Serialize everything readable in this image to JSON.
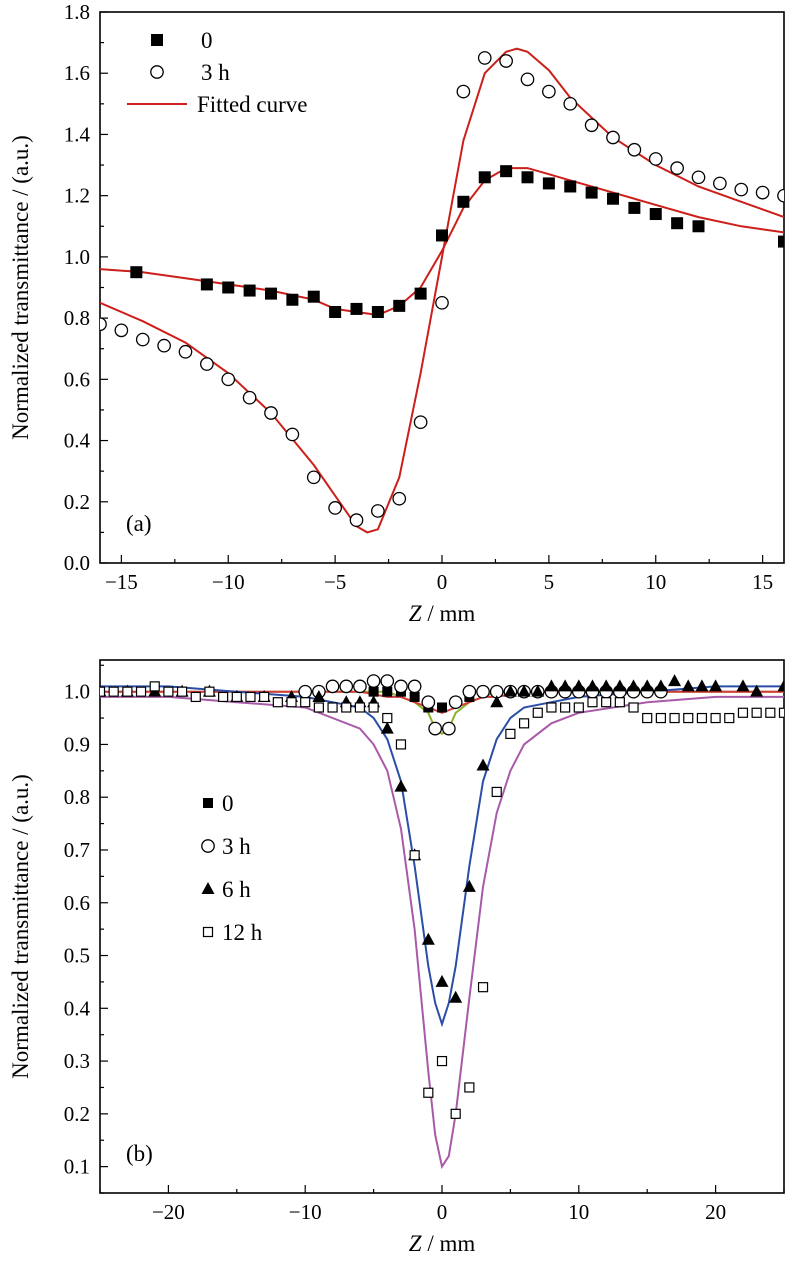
{
  "chart_data": [
    {
      "type": "scatter",
      "panel_label": "(a)",
      "xlabel": "Z / mm",
      "ylabel": "Normalized transmittance / (a.u.)",
      "xlim": [
        -16,
        16
      ],
      "ylim": [
        0.0,
        1.8
      ],
      "xticks": [
        -15,
        -10,
        -5,
        0,
        5,
        10,
        15
      ],
      "yticks": [
        0.0,
        0.2,
        0.4,
        0.6,
        0.8,
        1.0,
        1.2,
        1.4,
        1.6,
        1.8
      ],
      "grid": false,
      "legend": {
        "placement": "top-left",
        "entries": [
          "0",
          "3 h",
          "Fitted curve"
        ]
      },
      "series": [
        {
          "name": "0",
          "marker": "filled-square",
          "color": "#000000",
          "x": [
            -14.3,
            -11,
            -10,
            -9,
            -8,
            -7,
            -6,
            -5,
            -4,
            -3,
            -2,
            -1,
            0,
            1,
            2,
            3,
            4,
            5,
            6,
            7,
            8,
            9,
            10,
            11,
            12,
            16
          ],
          "y": [
            0.95,
            0.91,
            0.9,
            0.89,
            0.88,
            0.86,
            0.87,
            0.82,
            0.83,
            0.82,
            0.84,
            0.88,
            1.07,
            1.18,
            1.26,
            1.28,
            1.26,
            1.24,
            1.23,
            1.21,
            1.19,
            1.16,
            1.14,
            1.11,
            1.1,
            1.05
          ]
        },
        {
          "name": "3 h",
          "marker": "open-circle",
          "color": "#000000",
          "x": [
            -16,
            -15,
            -14,
            -13,
            -12,
            -11,
            -10,
            -9,
            -8,
            -7,
            -6,
            -5,
            -4,
            -3,
            -2,
            -1,
            0,
            1,
            2,
            3,
            4,
            5,
            6,
            7,
            8,
            9,
            10,
            11,
            12,
            13,
            14,
            15,
            16
          ],
          "y": [
            0.78,
            0.76,
            0.73,
            0.71,
            0.69,
            0.65,
            0.6,
            0.54,
            0.49,
            0.42,
            0.28,
            0.18,
            0.14,
            0.17,
            0.21,
            0.46,
            0.85,
            1.54,
            1.65,
            1.64,
            1.58,
            1.54,
            1.5,
            1.43,
            1.39,
            1.35,
            1.32,
            1.29,
            1.26,
            1.24,
            1.22,
            1.21,
            1.2
          ]
        },
        {
          "name": "Fitted curve",
          "line_for": "0",
          "color": "#cc1f1a",
          "x": [
            -16,
            -14,
            -12,
            -10,
            -8,
            -6,
            -5,
            -4,
            -3,
            -2,
            -1,
            0,
            1,
            2,
            3,
            4,
            5,
            6,
            8,
            10,
            12,
            14,
            16
          ],
          "y": [
            0.96,
            0.95,
            0.93,
            0.91,
            0.89,
            0.86,
            0.83,
            0.82,
            0.81,
            0.84,
            0.9,
            1.02,
            1.16,
            1.25,
            1.29,
            1.29,
            1.27,
            1.25,
            1.21,
            1.17,
            1.13,
            1.1,
            1.08
          ]
        },
        {
          "name": "Fitted curve",
          "line_for": "3 h",
          "color": "#cc1f1a",
          "x": [
            -16,
            -14,
            -12,
            -10,
            -8,
            -6,
            -5,
            -4,
            -3.5,
            -3,
            -2,
            -1,
            0,
            1,
            2,
            3,
            3.5,
            4,
            5,
            6,
            8,
            10,
            12,
            14,
            16
          ],
          "y": [
            0.85,
            0.79,
            0.72,
            0.62,
            0.49,
            0.32,
            0.22,
            0.12,
            0.1,
            0.11,
            0.28,
            0.62,
            1.0,
            1.38,
            1.6,
            1.67,
            1.68,
            1.67,
            1.61,
            1.52,
            1.39,
            1.3,
            1.23,
            1.18,
            1.13
          ]
        }
      ]
    },
    {
      "type": "scatter",
      "panel_label": "(b)",
      "xlabel": "Z / mm",
      "ylabel": "Normalized transmittance / (a.u.)",
      "xlim": [
        -25,
        25
      ],
      "ylim": [
        0.05,
        1.06
      ],
      "xticks": [
        -20,
        -10,
        0,
        10,
        20
      ],
      "yticks": [
        0.1,
        0.2,
        0.3,
        0.4,
        0.5,
        0.6,
        0.7,
        0.8,
        0.9,
        1.0
      ],
      "grid": false,
      "legend": {
        "placement": "left",
        "entries": [
          "0",
          "3 h",
          "6 h",
          "12 h"
        ]
      },
      "series": [
        {
          "name": "0",
          "marker": "filled-square-small",
          "color": "#000000",
          "x": [
            -5,
            -4,
            -3,
            -2,
            -1,
            0,
            1,
            2,
            3,
            4
          ],
          "y": [
            1.0,
            1.0,
            1.0,
            0.99,
            0.97,
            0.97,
            0.98,
            0.99,
            1.0,
            1.0
          ]
        },
        {
          "name": "3 h",
          "marker": "open-circle",
          "color": "#000000",
          "x": [
            -10,
            -9,
            -8,
            -7,
            -6,
            -5,
            -4,
            -3,
            -2,
            -1,
            -0.5,
            0.5,
            1,
            2,
            3,
            4,
            5,
            6,
            7,
            8,
            9,
            10,
            11,
            12,
            13,
            14,
            15,
            16
          ],
          "y": [
            1.0,
            1.0,
            1.01,
            1.01,
            1.01,
            1.02,
            1.02,
            1.01,
            1.01,
            0.98,
            0.93,
            0.93,
            0.98,
            1.0,
            1.0,
            1.0,
            1.0,
            1.0,
            1.0,
            1.0,
            1.0,
            1.0,
            1.0,
            1.0,
            1.0,
            1.0,
            1.0,
            1.0
          ]
        },
        {
          "name": "6 h",
          "marker": "filled-triangle",
          "color": "#000000",
          "x": [
            -25,
            -23,
            -21,
            -19,
            -17,
            -15,
            -13,
            -11,
            -9,
            -7,
            -6,
            -5,
            -4,
            -3,
            -2,
            -1,
            0,
            1,
            2,
            3,
            4,
            5,
            6,
            7,
            8,
            9,
            10,
            11,
            12,
            13,
            14,
            15,
            16,
            17,
            18,
            19,
            20,
            22,
            23,
            25
          ],
          "y": [
            1.0,
            1.0,
            1.0,
            1.0,
            1.0,
            0.99,
            0.99,
            0.99,
            0.99,
            0.98,
            0.98,
            0.98,
            0.93,
            0.82,
            0.69,
            0.53,
            0.45,
            0.42,
            0.63,
            0.86,
            0.98,
            1.0,
            1.0,
            1.0,
            1.01,
            1.01,
            1.01,
            1.01,
            1.01,
            1.01,
            1.01,
            1.01,
            1.01,
            1.02,
            1.01,
            1.01,
            1.01,
            1.01,
            1.0,
            1.01
          ]
        },
        {
          "name": "12 h",
          "marker": "open-square",
          "color": "#000000",
          "x": [
            -25,
            -24,
            -23,
            -22,
            -21,
            -20,
            -19,
            -18,
            -17,
            -16,
            -15,
            -14,
            -13,
            -12,
            -11,
            -10,
            -9,
            -8,
            -7,
            -6,
            -5,
            -4,
            -3,
            -2,
            -1,
            0,
            1,
            2,
            3,
            4,
            5,
            6,
            7,
            8,
            9,
            10,
            11,
            12,
            13,
            14,
            15,
            16,
            17,
            18,
            19,
            20,
            21,
            22,
            23,
            24,
            25
          ],
          "y": [
            1.0,
            1.0,
            1.0,
            1.0,
            1.01,
            1.0,
            1.0,
            0.99,
            1.0,
            0.99,
            0.99,
            0.99,
            0.99,
            0.98,
            0.98,
            0.98,
            0.97,
            0.97,
            0.97,
            0.97,
            0.97,
            0.95,
            0.9,
            0.69,
            0.24,
            0.3,
            0.2,
            0.25,
            0.44,
            0.81,
            0.92,
            0.94,
            0.96,
            0.97,
            0.97,
            0.97,
            0.98,
            0.98,
            0.98,
            0.97,
            0.95,
            0.95,
            0.95,
            0.95,
            0.95,
            0.95,
            0.95,
            0.96,
            0.96,
            0.96,
            0.96
          ]
        },
        {
          "name": "",
          "line_for": "3 h",
          "color": "#8ab52a",
          "x": [
            -25,
            -15,
            -10,
            -6,
            -4,
            -3,
            -2,
            -1,
            -0.5,
            0,
            0.5,
            1,
            2,
            3,
            4,
            6,
            10,
            15,
            25
          ],
          "y": [
            1.0,
            1.0,
            1.0,
            1.0,
            1.0,
            0.99,
            0.98,
            0.96,
            0.93,
            0.92,
            0.93,
            0.96,
            0.98,
            0.99,
            1.0,
            1.0,
            1.0,
            1.0,
            1.0
          ]
        },
        {
          "name": "",
          "line_for": "0",
          "color": "#d63a3a",
          "x": [
            -25,
            -10,
            -6,
            -4,
            -3,
            -2,
            -1,
            0,
            1,
            2,
            3,
            4,
            6,
            10,
            25
          ],
          "y": [
            1.0,
            1.0,
            1.0,
            0.99,
            0.99,
            0.98,
            0.97,
            0.96,
            0.97,
            0.98,
            0.99,
            0.99,
            1.0,
            1.0,
            1.0
          ]
        },
        {
          "name": "",
          "line_for": "6 h",
          "color": "#2a4ea6",
          "x": [
            -25,
            -20,
            -15,
            -10,
            -8,
            -6,
            -5,
            -4,
            -3,
            -2,
            -1,
            -0.5,
            0,
            0.5,
            1,
            2,
            3,
            4,
            5,
            6,
            8,
            10,
            15,
            20,
            25
          ],
          "y": [
            1.01,
            1.01,
            1.0,
            0.99,
            0.98,
            0.97,
            0.95,
            0.91,
            0.83,
            0.67,
            0.48,
            0.41,
            0.37,
            0.41,
            0.48,
            0.67,
            0.83,
            0.91,
            0.95,
            0.97,
            0.98,
            0.99,
            1.0,
            1.01,
            1.01
          ]
        },
        {
          "name": "",
          "line_for": "12 h",
          "color": "#a85aa8",
          "x": [
            -25,
            -20,
            -15,
            -10,
            -8,
            -6,
            -5,
            -4,
            -3,
            -2,
            -1,
            -0.5,
            0,
            0.5,
            1,
            2,
            3,
            4,
            5,
            6,
            8,
            10,
            15,
            20,
            25
          ],
          "y": [
            0.99,
            0.99,
            0.98,
            0.97,
            0.95,
            0.93,
            0.9,
            0.85,
            0.74,
            0.55,
            0.28,
            0.16,
            0.1,
            0.12,
            0.2,
            0.42,
            0.63,
            0.77,
            0.85,
            0.9,
            0.94,
            0.96,
            0.98,
            0.99,
            0.99
          ]
        }
      ]
    }
  ]
}
